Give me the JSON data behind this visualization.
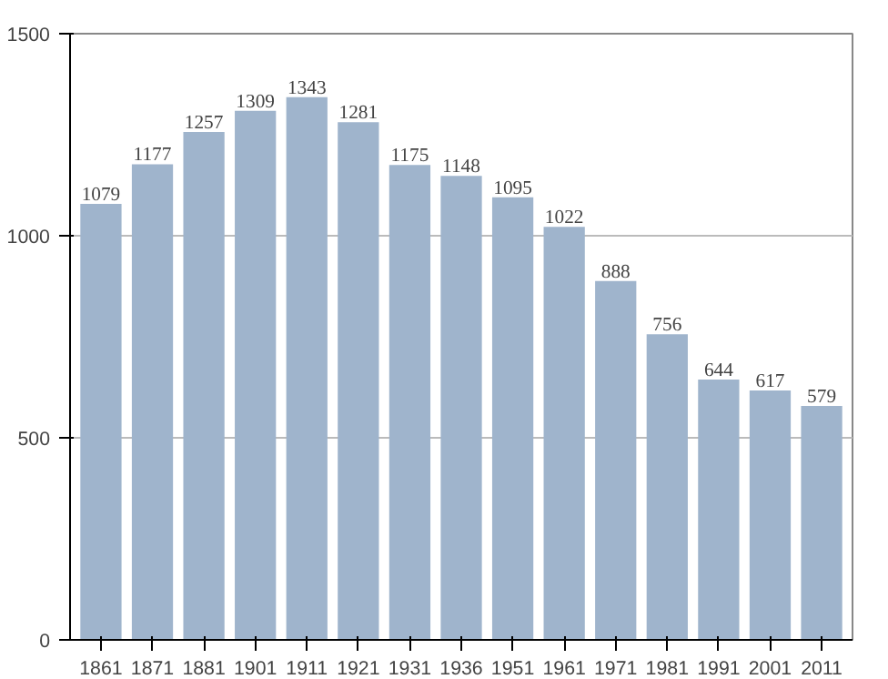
{
  "chart_data": {
    "type": "bar",
    "categories": [
      "1861",
      "1871",
      "1881",
      "1901",
      "1911",
      "1921",
      "1931",
      "1936",
      "1951",
      "1961",
      "1971",
      "1981",
      "1991",
      "2001",
      "2011"
    ],
    "values": [
      1079,
      1177,
      1257,
      1309,
      1343,
      1281,
      1175,
      1148,
      1095,
      1022,
      888,
      756,
      644,
      617,
      579
    ],
    "color": "#9fb4cc",
    "ylim": [
      0,
      1500
    ],
    "yticks": [
      0,
      500,
      1000,
      1500
    ],
    "grid": "y",
    "data_labels": true
  }
}
